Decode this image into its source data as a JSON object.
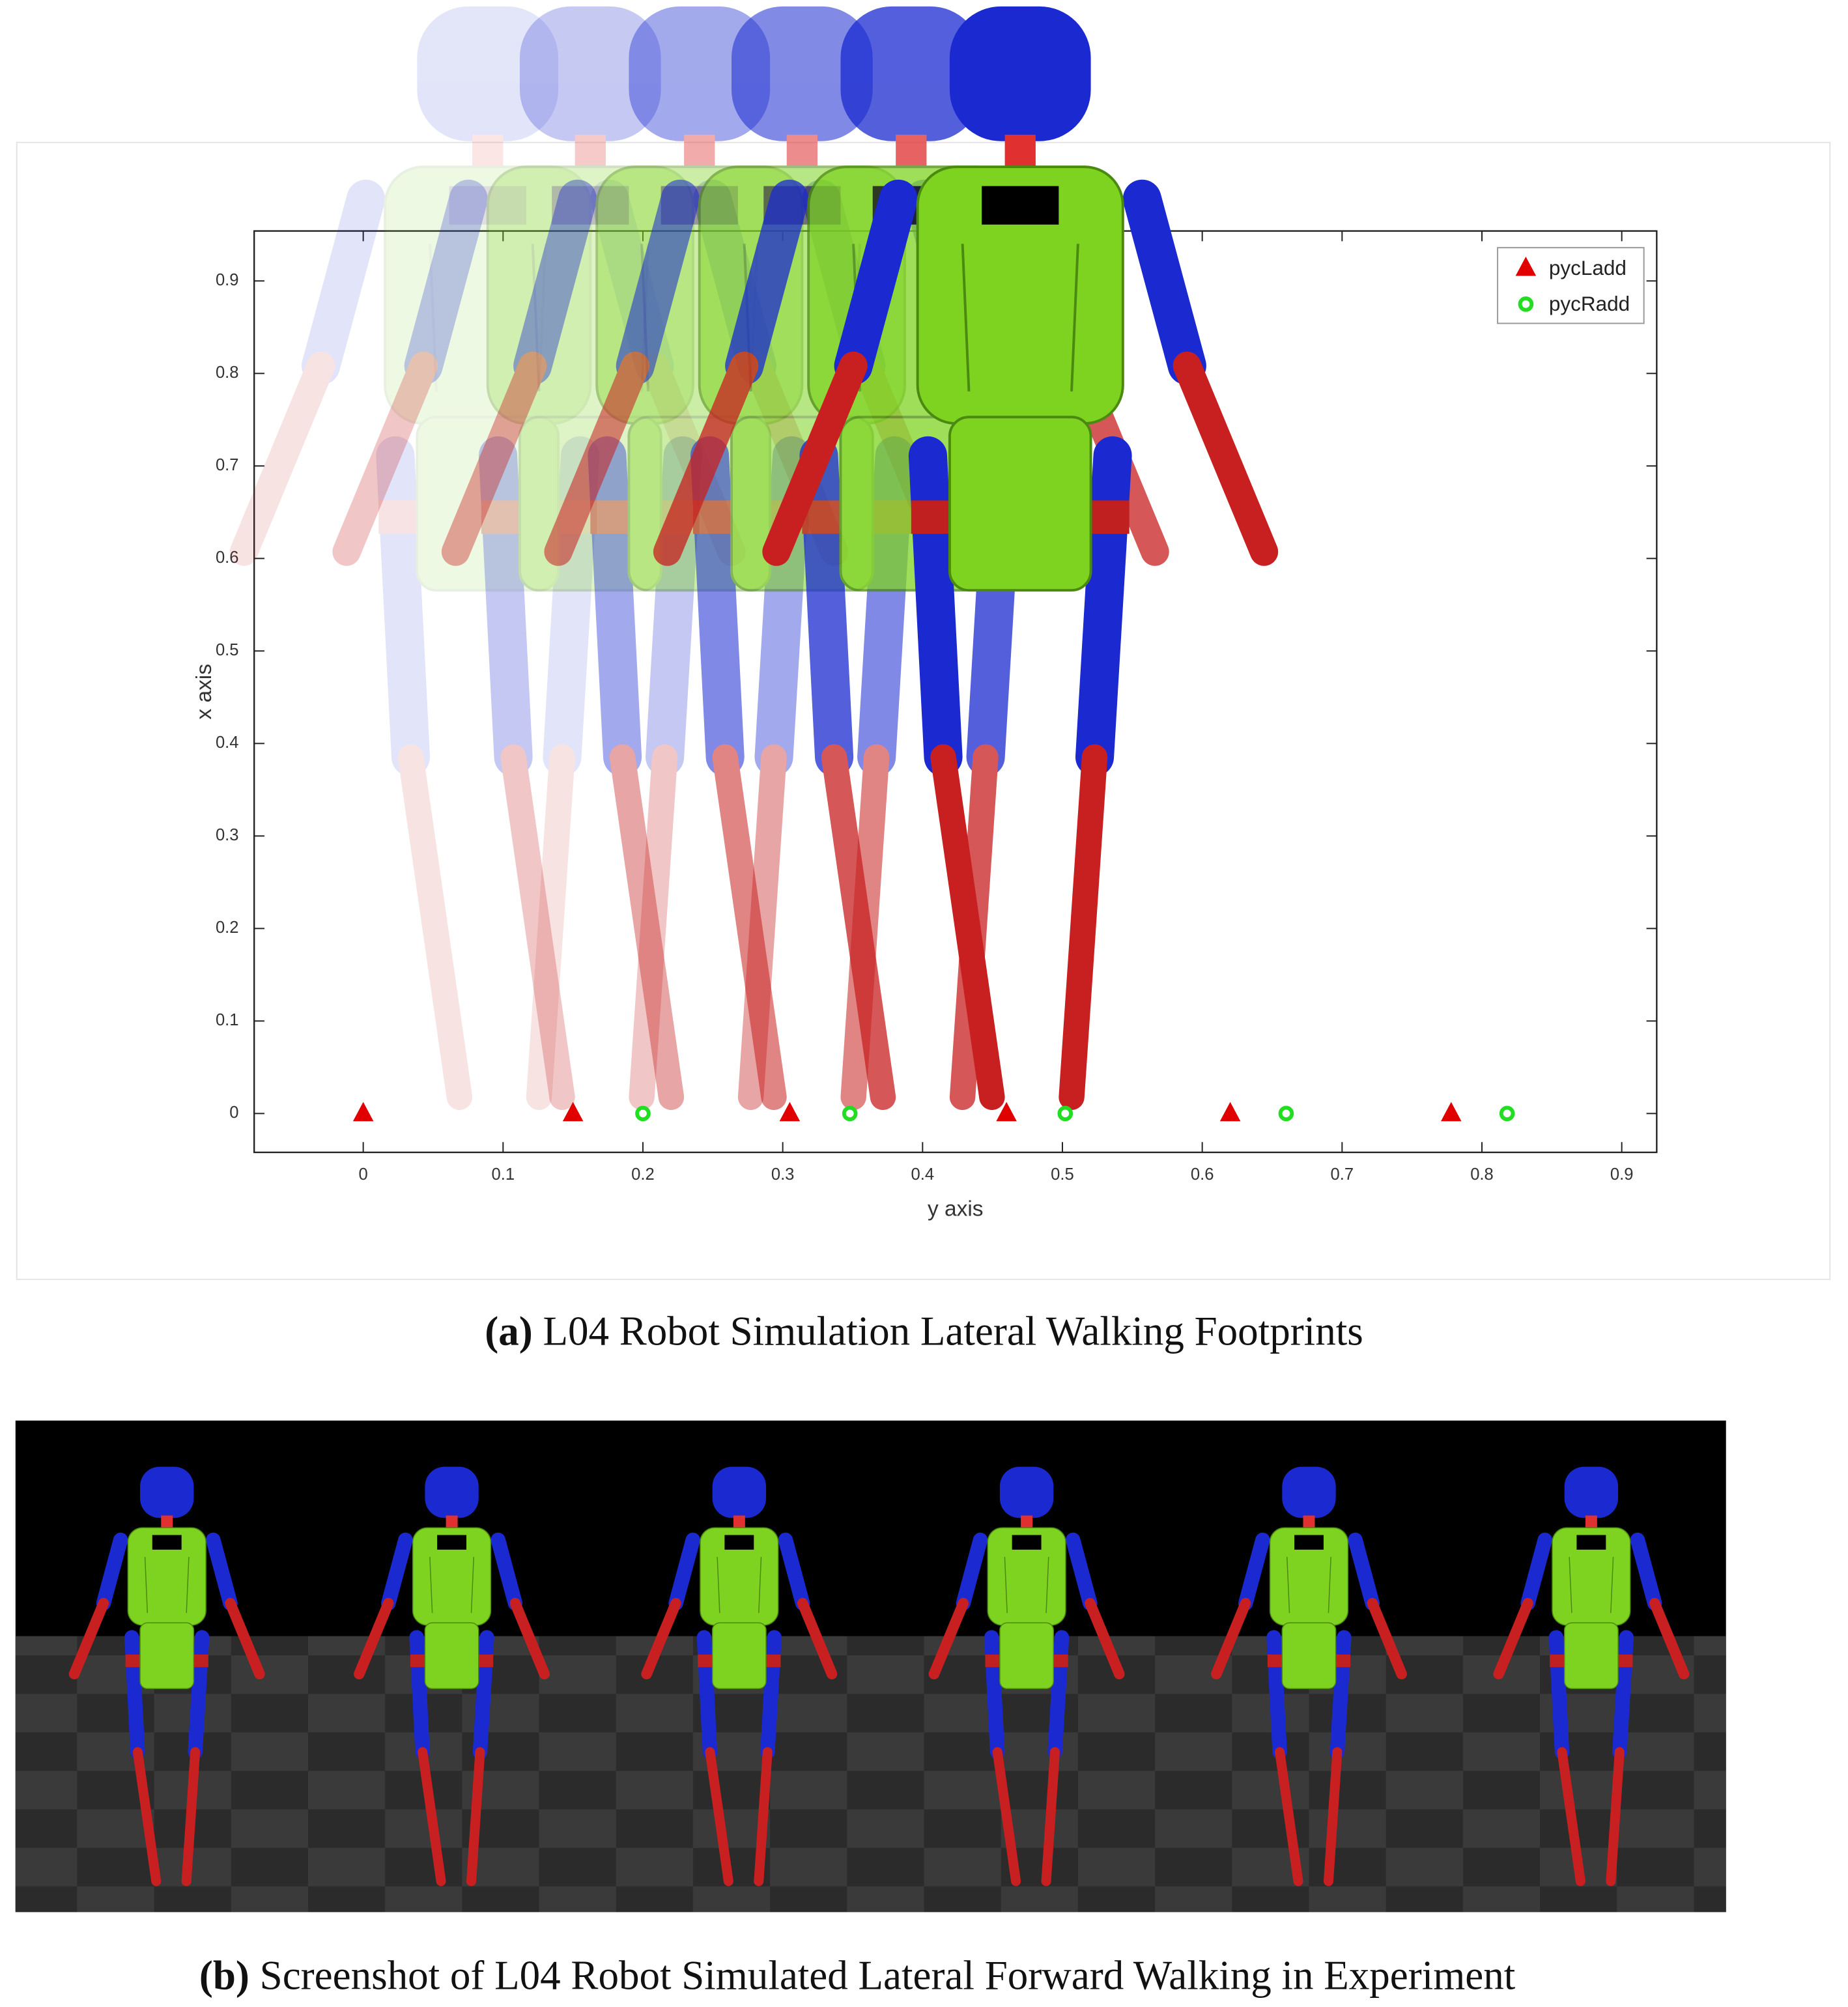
{
  "chart_data": {
    "type": "scatter",
    "xlabel": "y axis",
    "ylabel": "x axis",
    "xlim": [
      -0.078,
      0.925
    ],
    "ylim": [
      -0.042,
      0.954
    ],
    "xticks": [
      0,
      0.1,
      0.2,
      0.3,
      0.4,
      0.5,
      0.6,
      0.7,
      0.8,
      0.9
    ],
    "yticks": [
      0,
      0.1,
      0.2,
      0.3,
      0.4,
      0.5,
      0.6,
      0.7,
      0.8,
      0.9
    ],
    "legend": "upper right",
    "series": [
      {
        "name": "pycLadd",
        "color": "#e00000",
        "marker": "triangle",
        "x": [
          0,
          0.15,
          0.305,
          0.46,
          0.62,
          0.778
        ],
        "values": [
          0,
          0,
          0,
          0,
          0,
          0
        ]
      },
      {
        "name": "pycRadd",
        "color": "#22dd22",
        "marker": "circle",
        "x": [
          0.2,
          0.348,
          0.502,
          0.66,
          0.818
        ],
        "values": [
          0,
          0,
          0,
          0,
          0
        ]
      }
    ]
  },
  "captions": [
    {
      "label": "(a)",
      "text": "L04 Robot Simulation Lateral Walking Footprints"
    },
    {
      "label": "(b)",
      "text": "Screenshot of L04 Robot Simulated Lateral Forward Walking in Experiment"
    }
  ]
}
